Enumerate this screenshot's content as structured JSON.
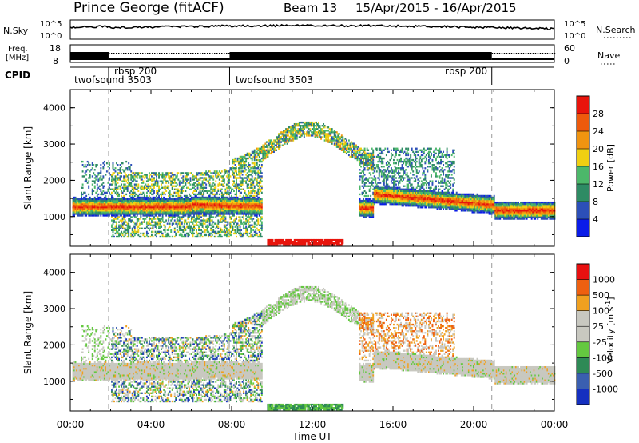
{
  "header": {
    "station": "Prince George (fitACF)",
    "beam": "Beam 13",
    "dates": "15/Apr/2015 - 16/Apr/2015"
  },
  "summary": {
    "nsky_label": "N.Sky",
    "nsky_ticks": [
      "10^5",
      "10^0"
    ],
    "nsearch_label": "N.Search",
    "nsearch_ticks": [
      "10^5",
      "10^0"
    ],
    "freq_label_1": "Freq.",
    "freq_label_2": "[MHz]",
    "freq_ticks": [
      "18",
      "8"
    ],
    "nave_label": "Nave",
    "nave_ticks": [
      "60",
      "0"
    ],
    "cpid_label": "CPID",
    "cpid_segments": [
      {
        "name": "twofsound 3503",
        "start_h": 0.0,
        "end_h": 1.9
      },
      {
        "name": "rbsp 200",
        "start_h": 1.9,
        "end_h": 7.9
      },
      {
        "name": "twofsound 3503",
        "start_h": 7.9,
        "end_h": 20.9
      },
      {
        "name": "rbsp 200",
        "start_h": 20.9,
        "end_h": 24.0
      }
    ]
  },
  "chart_data": [
    {
      "type": "heatmap",
      "quantity": "Power",
      "ylabel": "Slant Range [km]",
      "ylim": [
        180,
        4500
      ],
      "yticks": [
        "1000",
        "2000",
        "3000",
        "4000"
      ],
      "xlim": [
        0,
        24
      ],
      "colorbar_label": "Power [dB]",
      "colorbar_ticks": [
        "4",
        "8",
        "12",
        "16",
        "20",
        "24",
        "28"
      ],
      "colorbar_colors": [
        "#0a1ce8",
        "#2c4fb8",
        "#2e8b64",
        "#4cb86a",
        "#f0cf12",
        "#f09410",
        "#ee5a0c",
        "#e8140c"
      ]
    },
    {
      "type": "heatmap",
      "quantity": "Velocity",
      "ylabel": "Slant Range [km]",
      "ylim": [
        180,
        4500
      ],
      "yticks": [
        "1000",
        "2000",
        "3000",
        "4000"
      ],
      "xlim": [
        0,
        24
      ],
      "colorbar_label": "Velocity",
      "colorbar_unit": "[m s",
      "colorbar_unit_exp": "-1",
      "colorbar_unit_close": "]",
      "colorbar_ticks": [
        "1000",
        "500",
        "100",
        "25",
        "-25",
        "-100",
        "-500",
        "-1000"
      ],
      "colorbar_colors": [
        "#1530c0",
        "#3a5fb0",
        "#2e8a56",
        "#64c840",
        "#c8c8c0",
        "#c8c8c0",
        "#f0a020",
        "#ee6010",
        "#e81010"
      ]
    }
  ],
  "xaxis": {
    "label": "Time UT",
    "ticks": [
      "00:00",
      "04:00",
      "08:00",
      "12:00",
      "16:00",
      "20:00",
      "00:00"
    ]
  }
}
